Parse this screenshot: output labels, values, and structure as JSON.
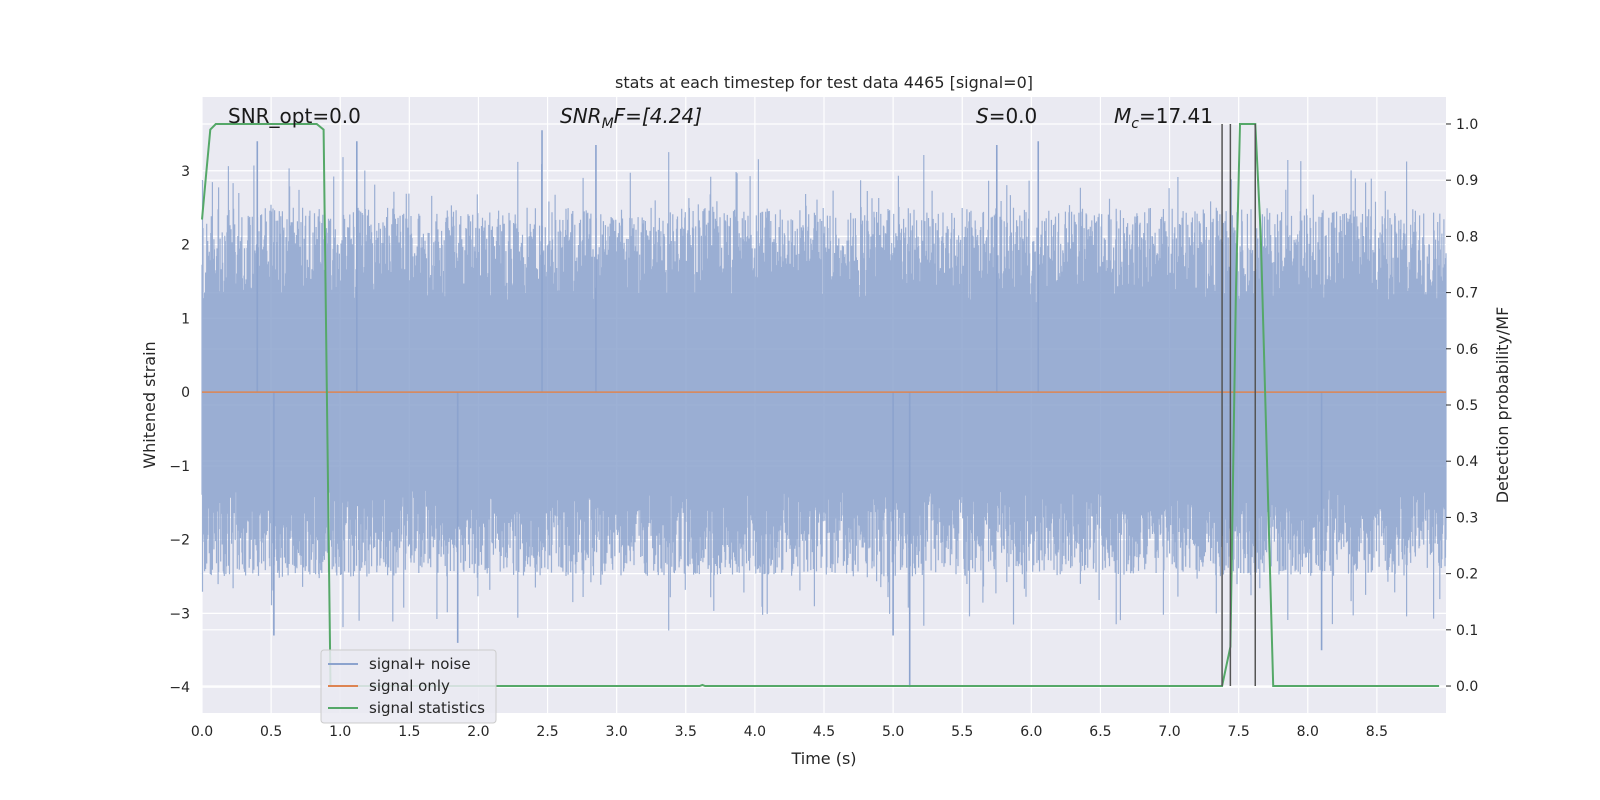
{
  "chart_data": {
    "type": "line",
    "title": "stats at each timestep for test data 4465 [signal=0]",
    "xlabel": "Time (s)",
    "ylabel": "Whitened strain",
    "ylabel_right": "Detection probability/MF",
    "xlim": [
      0.0,
      9.0
    ],
    "ylim": [
      -4.35,
      4.0
    ],
    "ylim_right": [
      -0.048,
      1.048
    ],
    "grid": true,
    "legend_position": "lower-left",
    "x_ticks": [
      "0.0",
      "0.5",
      "1.0",
      "1.5",
      "2.0",
      "2.5",
      "3.0",
      "3.5",
      "4.0",
      "4.5",
      "5.0",
      "5.5",
      "6.0",
      "6.5",
      "7.0",
      "7.5",
      "8.0",
      "8.5"
    ],
    "y_ticks": [
      "3",
      "2",
      "1",
      "0",
      "−1",
      "−2",
      "−3",
      "−4"
    ],
    "y_right_ticks": [
      "1.0",
      "0.9",
      "0.8",
      "0.7",
      "0.6",
      "0.5",
      "0.4",
      "0.3",
      "0.2",
      "0.1",
      "0.0"
    ],
    "annotations": {
      "snr_opt": "SNR_opt=0.0",
      "snr_mf_main": "SNR",
      "snr_mf_sub": "M",
      "snr_mf_tail": "F=[4.24]",
      "s_main": "S",
      "s_tail": "=0.0",
      "mc_main": "M",
      "mc_sub": "c",
      "mc_tail": "=17.41"
    },
    "series": [
      {
        "name": "signal+ noise",
        "color": "#8ca3ce",
        "kind": "noise",
        "envelope": [
          -3.3,
          3.6
        ],
        "x_range": [
          0.0,
          9.0
        ],
        "outliers": [
          [
            0.4,
            3.4
          ],
          [
            1.12,
            3.4
          ],
          [
            2.46,
            3.55
          ],
          [
            2.85,
            3.35
          ],
          [
            5.75,
            3.35
          ],
          [
            6.05,
            3.4
          ],
          [
            0.52,
            -3.3
          ],
          [
            1.85,
            -3.4
          ],
          [
            5.12,
            -4.0
          ],
          [
            8.1,
            -3.5
          ],
          [
            5.0,
            -3.3
          ]
        ]
      },
      {
        "name": "signal only",
        "color": "#dd8452",
        "kind": "line",
        "points": [
          [
            0.0,
            0.0
          ],
          [
            9.0,
            0.0
          ]
        ]
      },
      {
        "name": "signal statistics",
        "color": "#55a868",
        "kind": "line",
        "axis": "right",
        "points": [
          [
            0.0,
            0.83
          ],
          [
            0.03,
            0.91
          ],
          [
            0.06,
            0.99
          ],
          [
            0.1,
            1.0
          ],
          [
            0.83,
            1.0
          ],
          [
            0.88,
            0.99
          ],
          [
            0.93,
            0.0
          ],
          [
            3.6,
            0.0
          ],
          [
            3.62,
            0.002
          ],
          [
            3.64,
            0.0
          ],
          [
            7.38,
            0.0
          ],
          [
            7.44,
            0.07
          ],
          [
            7.48,
            0.7
          ],
          [
            7.51,
            1.0
          ],
          [
            7.62,
            1.0
          ],
          [
            7.66,
            0.8
          ],
          [
            7.75,
            0.0
          ],
          [
            8.95,
            0.0
          ]
        ]
      }
    ],
    "vlines": [
      7.38,
      7.44,
      7.62
    ],
    "vline_color": "#555555"
  }
}
